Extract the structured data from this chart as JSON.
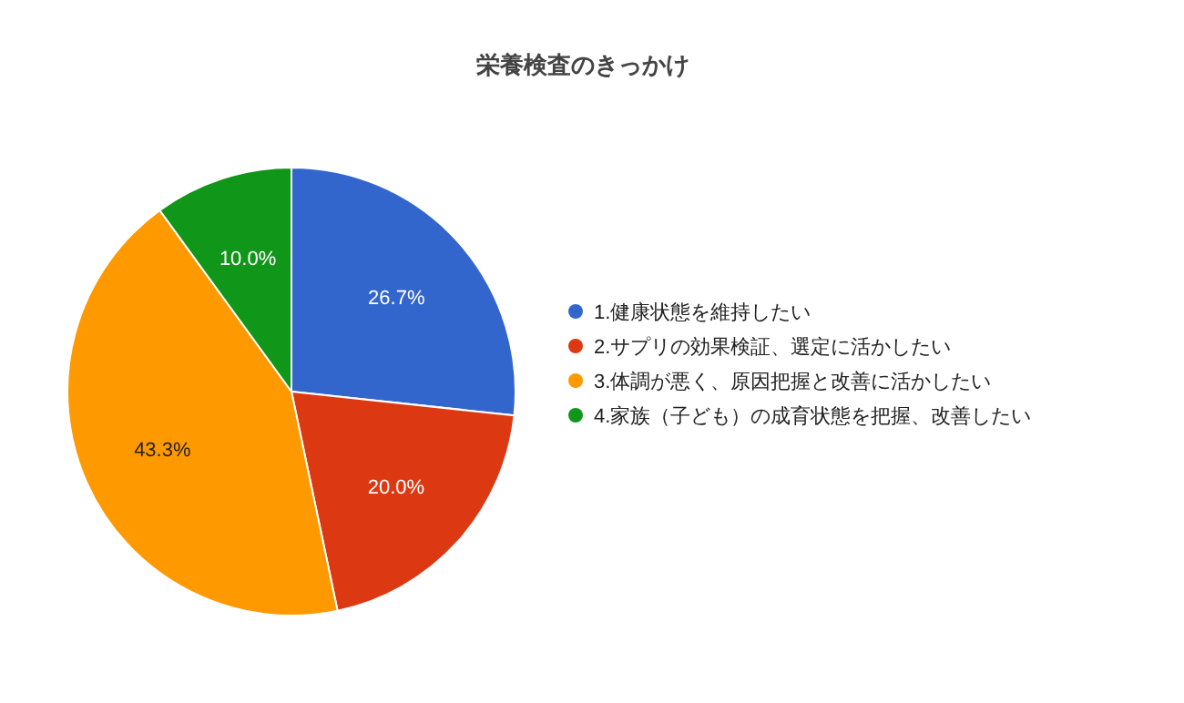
{
  "chart_data": {
    "type": "pie",
    "title": "栄養検査のきっかけ",
    "categories": [
      "1.健康状態を維持したい",
      "2.サプリの効果検証、選定に活かしたい",
      "3.体調が悪く、原因把握と改善に活かしたい",
      "4.家族（子ども）の成育状態を把握、改善したい"
    ],
    "values": [
      26.7,
      20.0,
      43.3,
      10.0
    ],
    "value_labels": [
      "26.7%",
      "20.0%",
      "43.3%",
      "10.0%"
    ],
    "colors": [
      "#3366cc",
      "#dc3912",
      "#ff9900",
      "#109618"
    ],
    "legend": "right"
  }
}
